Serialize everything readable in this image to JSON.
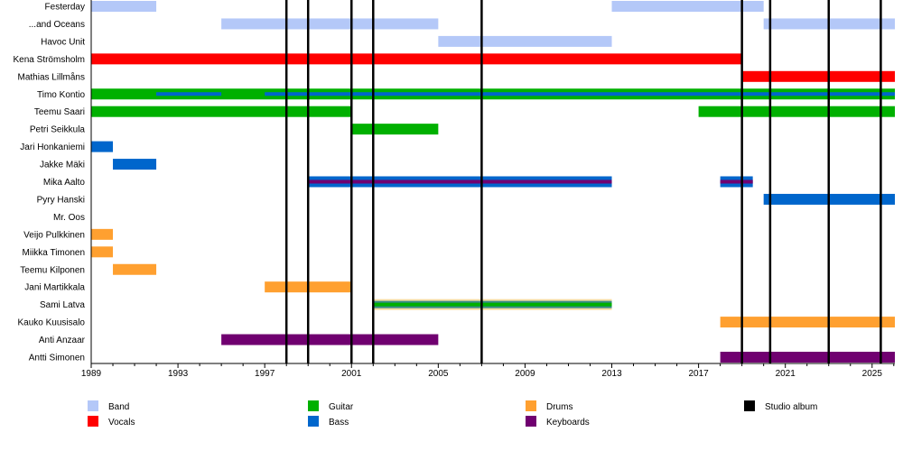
{
  "chart_data": {
    "type": "timeline",
    "xlim": [
      1989,
      2026.05
    ],
    "tick_labels": [
      "1989",
      "1993",
      "1997",
      "2001",
      "2005",
      "2009",
      "2013",
      "2017",
      "2021",
      "2025"
    ],
    "minor_ticks_every_year": true,
    "colors": {
      "Band": "#b4c8f8",
      "Vocals": "#ff0000",
      "Guitar": "#00b000",
      "Bass": "#0066cc",
      "Drums": "#ffa030",
      "Keyboards": "#700070",
      "Studio album": "#000000"
    },
    "legend": [
      {
        "label": "Band",
        "role": "Band"
      },
      {
        "label": "Vocals",
        "role": "Vocals"
      },
      {
        "label": "Guitar",
        "role": "Guitar"
      },
      {
        "label": "Bass",
        "role": "Bass"
      },
      {
        "label": "Drums",
        "role": "Drums"
      },
      {
        "label": "Keyboards",
        "role": "Keyboards"
      },
      {
        "label": "Studio album",
        "role": "Studio album"
      }
    ],
    "albums": [
      1998,
      1999,
      2001,
      2002,
      2007,
      2019,
      2020.3,
      2023,
      2025.4
    ],
    "rows": [
      {
        "name": "Festerday",
        "bars": [
          {
            "role": "Band",
            "from": 1989,
            "to": 1992
          },
          {
            "role": "Band",
            "from": 2013,
            "to": 2020
          }
        ]
      },
      {
        "name": "...and Oceans",
        "bars": [
          {
            "role": "Band",
            "from": 1995,
            "to": 2005
          },
          {
            "role": "Band",
            "from": 2020,
            "to": 2026.05
          }
        ]
      },
      {
        "name": "Havoc Unit",
        "bars": [
          {
            "role": "Band",
            "from": 2005,
            "to": 2013
          }
        ]
      },
      {
        "name": "Kena Strömsholm",
        "bars": [
          {
            "role": "Vocals",
            "from": 1989,
            "to": 2019
          }
        ]
      },
      {
        "name": "Mathias Lillmåns",
        "bars": [
          {
            "role": "Vocals",
            "from": 2019,
            "to": 2026.05
          }
        ]
      },
      {
        "name": "Timo Kontio",
        "bars": [
          {
            "role": "Guitar",
            "from": 1989,
            "to": 2026.05
          },
          {
            "role": "Bass",
            "from": 1992,
            "to": 1995,
            "thin": true
          },
          {
            "role": "Bass",
            "from": 1997,
            "to": 2026.05,
            "thin": true
          }
        ]
      },
      {
        "name": "Teemu Saari",
        "bars": [
          {
            "role": "Guitar",
            "from": 1989,
            "to": 2001
          },
          {
            "role": "Guitar",
            "from": 2017,
            "to": 2026.05
          }
        ]
      },
      {
        "name": "Petri Seikkula",
        "bars": [
          {
            "role": "Guitar",
            "from": 2001,
            "to": 2005
          }
        ]
      },
      {
        "name": "Jari Honkaniemi",
        "bars": [
          {
            "role": "Bass",
            "from": 1989,
            "to": 1990
          }
        ]
      },
      {
        "name": "Jakke Mäki",
        "bars": [
          {
            "role": "Bass",
            "from": 1990,
            "to": 1992
          }
        ]
      },
      {
        "name": "Mika Aalto",
        "bars": [
          {
            "role": "Bass",
            "from": 1999,
            "to": 2013
          },
          {
            "role": "Keyboards",
            "from": 1999,
            "to": 2013,
            "thin": true
          },
          {
            "role": "Bass",
            "from": 2018,
            "to": 2019.5
          },
          {
            "role": "Keyboards",
            "from": 2018,
            "to": 2019.5,
            "thin": true
          }
        ]
      },
      {
        "name": "Pyry Hanski",
        "bars": [
          {
            "role": "Bass",
            "from": 2020,
            "to": 2026.05
          }
        ]
      },
      {
        "name": "Mr. Oos",
        "bars": []
      },
      {
        "name": "Veijo Pulkkinen",
        "bars": [
          {
            "role": "Drums",
            "from": 1989,
            "to": 1990
          }
        ]
      },
      {
        "name": "Miikka Timonen",
        "bars": [
          {
            "role": "Drums",
            "from": 1989,
            "to": 1990
          }
        ]
      },
      {
        "name": "Teemu Kilponen",
        "bars": [
          {
            "role": "Drums",
            "from": 1990,
            "to": 1992
          }
        ]
      },
      {
        "name": "Jani Martikkala",
        "bars": [
          {
            "role": "Drums",
            "from": 1997,
            "to": 2001
          }
        ]
      },
      {
        "name": "Sami Latva",
        "bars": [
          {
            "role": "Drums",
            "from": 2002,
            "to": 2013
          },
          {
            "role": "Bass",
            "from": 2002,
            "to": 2013,
            "thin": true
          },
          {
            "role": "Guitar",
            "from": 2002,
            "to": 2013,
            "thinner": true
          }
        ]
      },
      {
        "name": "Kauko Kuusisalo",
        "bars": [
          {
            "role": "Drums",
            "from": 2018,
            "to": 2026.05
          }
        ]
      },
      {
        "name": "Anti Anzaar",
        "bars": [
          {
            "role": "Keyboards",
            "from": 1995,
            "to": 2005
          }
        ]
      },
      {
        "name": "Antti Simonen",
        "bars": [
          {
            "role": "Keyboards",
            "from": 2018,
            "to": 2026.05
          }
        ]
      }
    ]
  }
}
